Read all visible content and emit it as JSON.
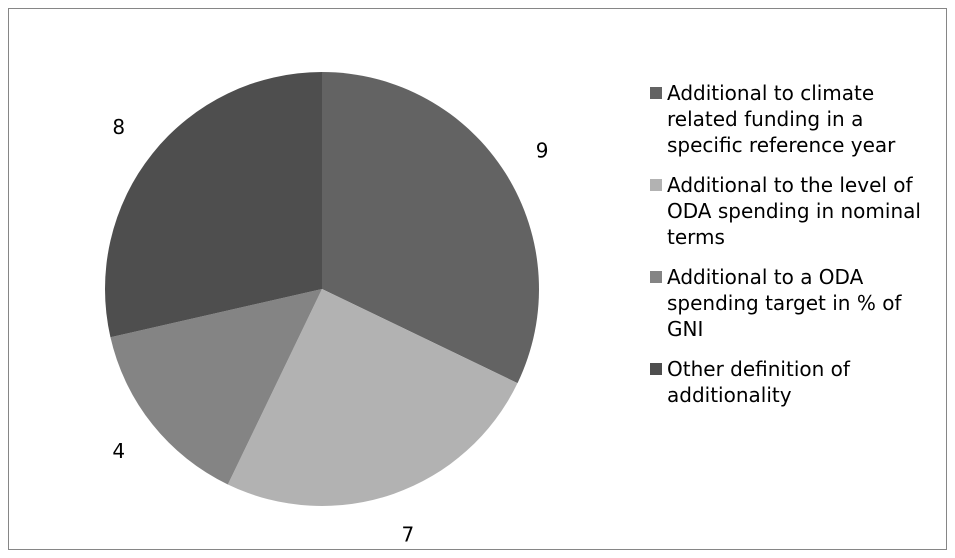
{
  "chart_data": {
    "type": "pie",
    "title": "",
    "start_angle_deg": 0,
    "direction": "clockwise",
    "legend_position": "right",
    "slices": [
      {
        "label": "Additional to climate\nrelated funding in a\nspecific reference year",
        "value": 9,
        "color": "#636363"
      },
      {
        "label": "Additional to the level of\nODA spending in nominal\nterms",
        "value": 7,
        "color": "#b2b2b2"
      },
      {
        "label": "Additional to a ODA\nspending target in % of\nGNI",
        "value": 4,
        "color": "#848484"
      },
      {
        "label": "Other definition of\nadditionality",
        "value": 8,
        "color": "#4e4e4e"
      }
    ]
  }
}
